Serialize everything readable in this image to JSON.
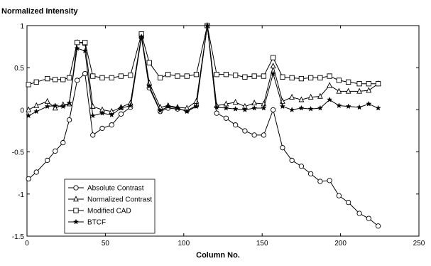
{
  "chart_data": {
    "type": "line",
    "title": "",
    "ylabel": "Normalized Intensity",
    "xlabel": "Column No.",
    "xlim": [
      0,
      250
    ],
    "ylim": [
      -1.5,
      1
    ],
    "x_ticks": [
      0,
      50,
      100,
      150,
      200,
      250
    ],
    "y_ticks": [
      -1.5,
      -1,
      -0.5,
      0,
      0.5,
      1
    ],
    "x_tick_labels": [
      "0",
      "50",
      "100",
      "150",
      "200",
      "250"
    ],
    "y_tick_labels": [
      "-1.5",
      "-1",
      "-0.5",
      "0",
      "0.5",
      "1"
    ],
    "grid": false,
    "legend_position": "lower-left",
    "series": [
      {
        "name": "Absolute Contrast",
        "marker": "circle",
        "x": [
          1,
          6,
          13,
          18,
          23,
          27,
          32,
          37,
          42,
          48,
          54,
          60,
          66,
          73,
          78,
          85,
          90,
          96,
          102,
          108,
          115,
          121,
          127,
          133,
          139,
          145,
          151,
          157,
          163,
          169,
          175,
          181,
          187,
          193,
          199,
          205,
          212,
          218,
          224
        ],
        "y": [
          -0.82,
          -0.74,
          -0.6,
          -0.49,
          -0.39,
          -0.12,
          0.35,
          0.43,
          -0.3,
          -0.22,
          -0.18,
          -0.05,
          0.03,
          0.86,
          0.26,
          -0.02,
          0.02,
          0.01,
          -0.01,
          0.05,
          1.0,
          -0.04,
          -0.1,
          -0.18,
          -0.25,
          -0.3,
          -0.3,
          0.0,
          -0.45,
          -0.6,
          -0.67,
          -0.76,
          -0.85,
          -0.84,
          -1.02,
          -1.1,
          -1.23,
          -1.29,
          -1.38
        ]
      },
      {
        "name": "Normalized Contrast",
        "marker": "triangle",
        "x": [
          1,
          6,
          13,
          18,
          23,
          27,
          32,
          37,
          42,
          48,
          54,
          60,
          66,
          73,
          78,
          85,
          90,
          96,
          102,
          108,
          115,
          121,
          127,
          133,
          139,
          145,
          151,
          157,
          163,
          169,
          175,
          181,
          187,
          193,
          199,
          205,
          212,
          218,
          224
        ],
        "y": [
          0.0,
          0.05,
          0.1,
          0.02,
          0.06,
          0.07,
          0.8,
          0.79,
          0.04,
          0.0,
          -0.02,
          0.03,
          0.08,
          0.88,
          0.32,
          0.03,
          0.05,
          0.03,
          0.02,
          0.1,
          1.0,
          0.05,
          0.07,
          0.09,
          0.04,
          0.08,
          0.07,
          0.52,
          0.1,
          0.15,
          0.12,
          0.15,
          0.16,
          0.29,
          0.22,
          0.22,
          0.22,
          0.23,
          0.31
        ]
      },
      {
        "name": "Modified CAD",
        "marker": "square",
        "x": [
          1,
          6,
          13,
          18,
          23,
          27,
          32,
          37,
          42,
          48,
          54,
          60,
          66,
          73,
          78,
          85,
          90,
          96,
          102,
          108,
          115,
          121,
          127,
          133,
          139,
          145,
          151,
          157,
          163,
          169,
          175,
          181,
          187,
          193,
          199,
          205,
          212,
          218,
          224
        ],
        "y": [
          0.3,
          0.33,
          0.37,
          0.36,
          0.36,
          0.38,
          0.8,
          0.8,
          0.4,
          0.38,
          0.38,
          0.4,
          0.41,
          0.9,
          0.56,
          0.38,
          0.42,
          0.4,
          0.4,
          0.42,
          1.0,
          0.42,
          0.42,
          0.41,
          0.39,
          0.4,
          0.4,
          0.62,
          0.39,
          0.38,
          0.37,
          0.38,
          0.38,
          0.4,
          0.35,
          0.33,
          0.31,
          0.31,
          0.31
        ]
      },
      {
        "name": "BTCF",
        "marker": "star",
        "x": [
          1,
          6,
          13,
          18,
          23,
          27,
          32,
          37,
          42,
          48,
          54,
          60,
          66,
          73,
          78,
          85,
          90,
          96,
          102,
          108,
          115,
          121,
          127,
          133,
          139,
          145,
          151,
          157,
          163,
          169,
          175,
          181,
          187,
          193,
          199,
          205,
          212,
          218,
          224
        ],
        "y": [
          -0.07,
          -0.02,
          0.04,
          0.05,
          0.04,
          0.08,
          0.73,
          0.7,
          -0.07,
          -0.04,
          -0.06,
          0.02,
          0.05,
          0.87,
          0.28,
          -0.01,
          0.04,
          0.02,
          -0.02,
          0.04,
          1.0,
          0.03,
          0.02,
          0.01,
          0.0,
          0.02,
          0.02,
          0.43,
          0.04,
          0.0,
          0.02,
          0.01,
          0.02,
          0.12,
          0.05,
          0.04,
          0.03,
          0.07,
          0.02
        ]
      }
    ]
  }
}
